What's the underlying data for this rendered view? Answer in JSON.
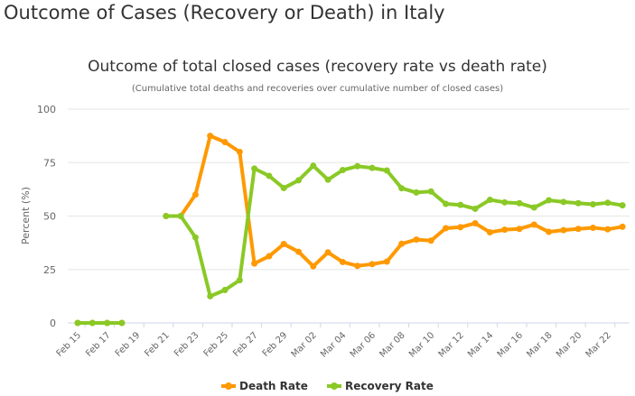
{
  "page_title": "Outcome of Cases (Recovery or Death) in Italy",
  "chart_data": {
    "type": "line",
    "title": "Outcome of total closed cases (recovery rate vs death rate)",
    "subtitle": "(Cumulative total deaths and recoveries over cumulative number of closed cases)",
    "ylabel": "Percent (%)",
    "xlabel": "",
    "ylim": [
      0,
      100
    ],
    "yticks": [
      0,
      25,
      50,
      75,
      100
    ],
    "grid": true,
    "legend": "bottom-center",
    "x": [
      "Feb 15",
      "Feb 16",
      "Feb 17",
      "Feb 18",
      "Feb 19",
      "Feb 20",
      "Feb 21",
      "Feb 22",
      "Feb 23",
      "Feb 24",
      "Feb 25",
      "Feb 26",
      "Feb 27",
      "Feb 28",
      "Feb 29",
      "Mar 01",
      "Mar 02",
      "Mar 03",
      "Mar 04",
      "Mar 05",
      "Mar 06",
      "Mar 07",
      "Mar 08",
      "Mar 09",
      "Mar 10",
      "Mar 11",
      "Mar 12",
      "Mar 13",
      "Mar 14",
      "Mar 15",
      "Mar 16",
      "Mar 17",
      "Mar 18",
      "Mar 19",
      "Mar 20",
      "Mar 21",
      "Mar 22",
      "Mar 23"
    ],
    "xtick_labels": [
      "Feb 15",
      "Feb 17",
      "Feb 19",
      "Feb 21",
      "Feb 23",
      "Feb 25",
      "Feb 27",
      "Feb 29",
      "Mar 02",
      "Mar 04",
      "Mar 06",
      "Mar 08",
      "Mar 10",
      "Mar 12",
      "Mar 14",
      "Mar 16",
      "Mar 18",
      "Mar 20",
      "Mar 22"
    ],
    "series": [
      {
        "name": "Death Rate",
        "color": "#ff9900",
        "values": [
          0,
          0,
          0,
          0,
          null,
          null,
          50,
          50,
          60,
          87.5,
          84.6,
          80,
          27.8,
          31.2,
          36.9,
          33.3,
          26.5,
          33,
          28.5,
          26.7,
          27.5,
          28.7,
          37,
          39,
          38.5,
          44.3,
          44.8,
          46.6,
          42.4,
          43.6,
          44,
          46,
          42.6,
          43.4,
          44,
          44.5,
          43.8,
          45
        ]
      },
      {
        "name": "Recovery Rate",
        "color": "#8ac926",
        "values": [
          0,
          0,
          0,
          0,
          null,
          null,
          50,
          50,
          40,
          12.5,
          15.4,
          20,
          72.2,
          68.8,
          63.1,
          66.7,
          73.5,
          67,
          71.5,
          73.3,
          72.5,
          71.3,
          63,
          61,
          61.5,
          55.7,
          55.2,
          53.4,
          57.6,
          56.4,
          56,
          54,
          57.4,
          56.6,
          56,
          55.5,
          56.2,
          55
        ]
      }
    ]
  }
}
